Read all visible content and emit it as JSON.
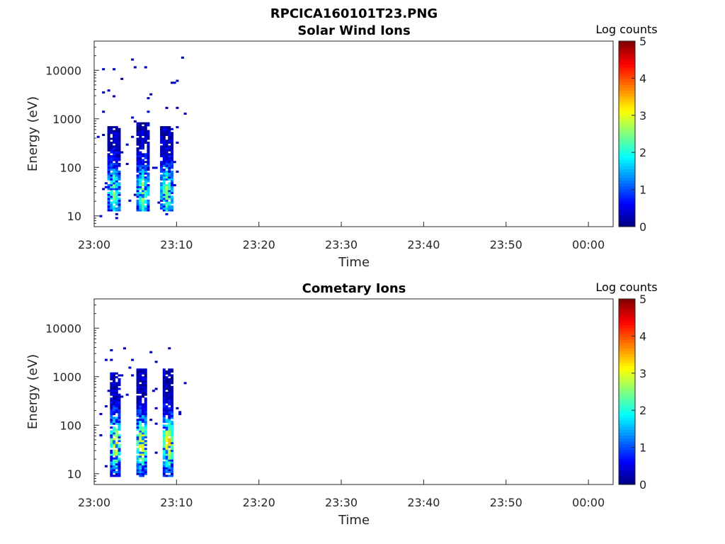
{
  "figure_title": "RPCICA160101T23.PNG",
  "chart_data": [
    {
      "type": "heatmap",
      "title": "Solar Wind Ions",
      "xlabel": "Time",
      "ylabel": "Energy (eV)",
      "xticks": [
        "23:00",
        "23:10",
        "23:20",
        "23:30",
        "23:40",
        "23:50",
        "00:00"
      ],
      "xlim_minutes": [
        0,
        63
      ],
      "yscale": "log",
      "yticks": [
        "10",
        "100",
        "1000",
        "10000"
      ],
      "ylim": [
        6,
        40000
      ],
      "colorbar": {
        "label": "Log counts",
        "ticks": [
          "0",
          "1",
          "2",
          "3",
          "4",
          "5"
        ],
        "range": [
          0,
          5
        ]
      },
      "bursts": [
        {
          "center_min": 2.4,
          "width_min": 1.6,
          "emin": 12,
          "emax": 700,
          "peak_log": 2.2,
          "peak_energy": 30
        },
        {
          "center_min": 5.9,
          "width_min": 1.6,
          "emin": 12,
          "emax": 800,
          "peak_log": 2.3,
          "peak_energy": 30
        },
        {
          "center_min": 8.8,
          "width_min": 1.6,
          "emin": 12,
          "emax": 700,
          "peak_log": 2.3,
          "peak_energy": 30
        }
      ],
      "scatter_emax": 18000
    },
    {
      "type": "heatmap",
      "title": "Cometary Ions",
      "xlabel": "Time",
      "ylabel": "Energy (eV)",
      "xticks": [
        "23:00",
        "23:10",
        "23:20",
        "23:30",
        "23:40",
        "23:50",
        "00:00"
      ],
      "xlim_minutes": [
        0,
        63
      ],
      "yscale": "log",
      "yticks": [
        "10",
        "100",
        "1000",
        "10000"
      ],
      "ylim": [
        6,
        40000
      ],
      "colorbar": {
        "label": "Log counts",
        "ticks": [
          "0",
          "1",
          "2",
          "3",
          "4",
          "5"
        ],
        "range": [
          0,
          5
        ]
      },
      "bursts": [
        {
          "center_min": 2.6,
          "width_min": 1.5,
          "emin": 8,
          "emax": 1200,
          "peak_log": 3.1,
          "peak_energy": 40
        },
        {
          "center_min": 5.8,
          "width_min": 1.5,
          "emin": 8,
          "emax": 1400,
          "peak_log": 3.3,
          "peak_energy": 40
        },
        {
          "center_min": 9.0,
          "width_min": 1.5,
          "emin": 8,
          "emax": 1400,
          "peak_log": 3.3,
          "peak_energy": 40
        }
      ],
      "scatter_emax": 5000
    }
  ]
}
